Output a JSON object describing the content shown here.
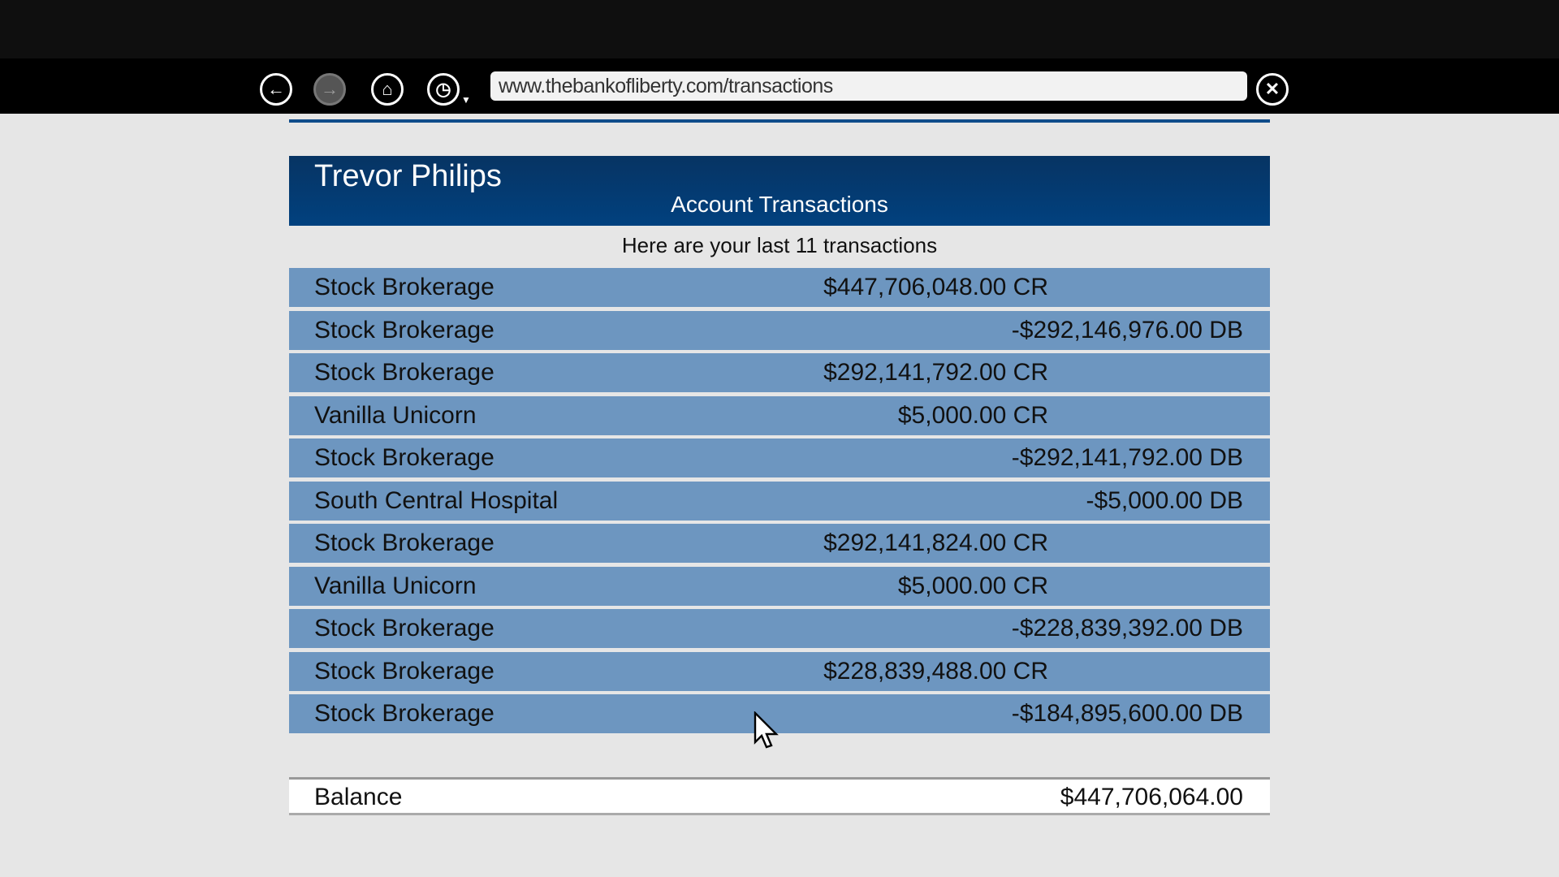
{
  "browser": {
    "url": "www.thebankofliberty.com/transactions"
  },
  "header": {
    "name": "Trevor Philips",
    "subtitle": "Account Transactions"
  },
  "intro": "Here are your last 11 transactions",
  "transactions": [
    {
      "label": "Stock Brokerage",
      "amount": "$447,706,048.00 CR",
      "type": "cr"
    },
    {
      "label": "Stock Brokerage",
      "amount": "-$292,146,976.00 DB",
      "type": "db"
    },
    {
      "label": "Stock Brokerage",
      "amount": "$292,141,792.00 CR",
      "type": "cr"
    },
    {
      "label": "Vanilla Unicorn",
      "amount": "$5,000.00 CR",
      "type": "cr"
    },
    {
      "label": "Stock Brokerage",
      "amount": "-$292,141,792.00 DB",
      "type": "db"
    },
    {
      "label": "South Central Hospital",
      "amount": "-$5,000.00 DB",
      "type": "db"
    },
    {
      "label": "Stock Brokerage",
      "amount": "$292,141,824.00 CR",
      "type": "cr"
    },
    {
      "label": "Vanilla Unicorn",
      "amount": "$5,000.00 CR",
      "type": "cr"
    },
    {
      "label": "Stock Brokerage",
      "amount": "-$228,839,392.00 DB",
      "type": "db"
    },
    {
      "label": "Stock Brokerage",
      "amount": "$228,839,488.00 CR",
      "type": "cr"
    },
    {
      "label": "Stock Brokerage",
      "amount": "-$184,895,600.00 DB",
      "type": "db"
    }
  ],
  "balance": {
    "label": "Balance",
    "amount": "$447,706,064.00"
  }
}
